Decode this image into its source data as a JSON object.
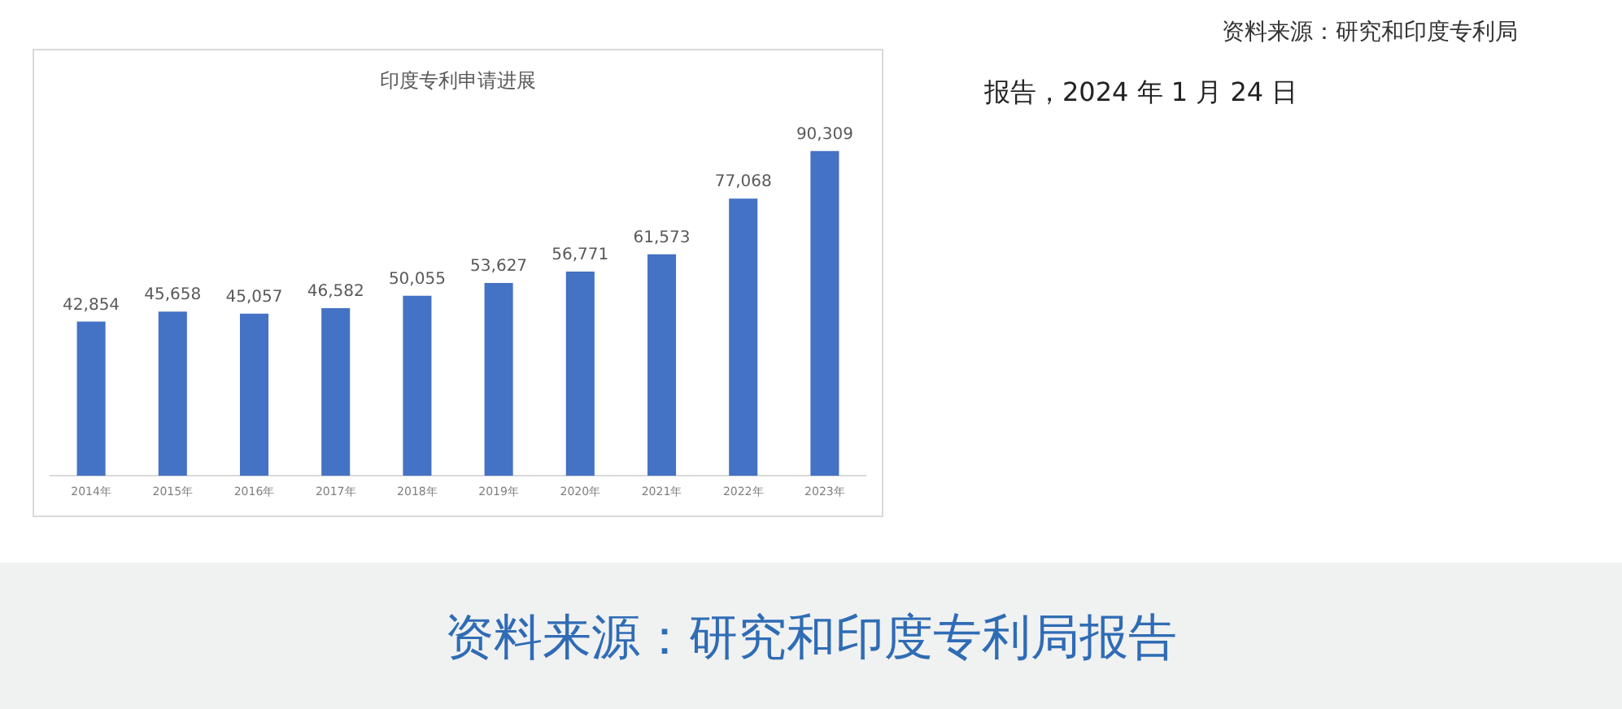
{
  "chart_data": {
    "type": "bar",
    "title": "印度专利申请进展",
    "categories": [
      "2014年",
      "2015年",
      "2016年",
      "2017年",
      "2018年",
      "2019年",
      "2020年",
      "2021年",
      "2022年",
      "2023年"
    ],
    "values": [
      42854,
      45658,
      45057,
      46582,
      50055,
      53627,
      56771,
      61573,
      77068,
      90309
    ],
    "value_labels": [
      "42,854",
      "45,658",
      "45,057",
      "46,582",
      "50,055",
      "53,627",
      "56,771",
      "61,573",
      "77,068",
      "90,309"
    ],
    "color": "#4472c4",
    "grid": false,
    "legend": false,
    "annotations": [
      "资料来源：研究和印度专利局",
      "报告，2024 年 1 月 24 日",
      "资料来源：研究和印度专利局报告"
    ]
  }
}
